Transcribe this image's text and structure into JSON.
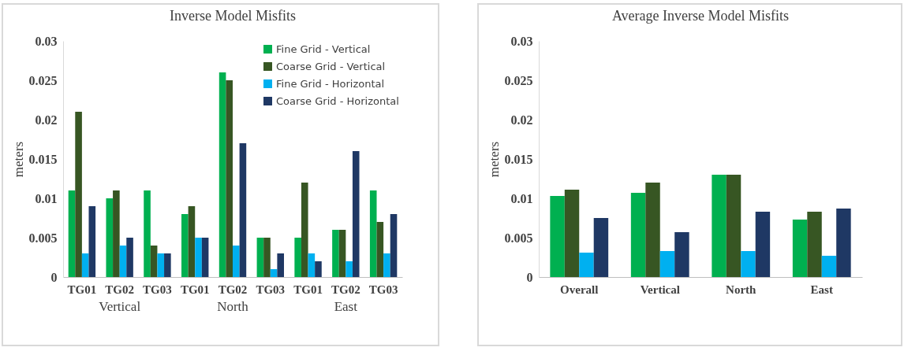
{
  "chart_data": [
    {
      "type": "bar",
      "title": "Inverse Model Misfits",
      "ylabel": "meters",
      "categories": [
        "TG01",
        "TG02",
        "TG03",
        "TG01",
        "TG02",
        "TG03",
        "TG01",
        "TG02",
        "TG03"
      ],
      "series": [
        {
          "name": "Fine Grid - Vertical",
          "color": "#00b050",
          "values": [
            0.011,
            0.01,
            0.011,
            0.008,
            0.026,
            0.005,
            0.005,
            0.006,
            0.011
          ]
        },
        {
          "name": "Coarse Grid - Vertical",
          "color": "#375623",
          "values": [
            0.021,
            0.011,
            0.004,
            0.009,
            0.025,
            0.005,
            0.012,
            0.006,
            0.007
          ]
        },
        {
          "name": "Fine Grid - Horizontal",
          "color": "#00b0f0",
          "values": [
            0.003,
            0.004,
            0.003,
            0.005,
            0.004,
            0.001,
            0.003,
            0.002,
            0.003
          ]
        },
        {
          "name": "Coarse Grid - Horizontal",
          "color": "#1f3864",
          "values": [
            0.009,
            0.005,
            0.003,
            0.005,
            0.017,
            0.003,
            0.002,
            0.016,
            0.008
          ]
        }
      ],
      "annotations": [
        "Vertical",
        "North",
        "East"
      ],
      "ylim": [
        0,
        0.03
      ],
      "yticks": [
        0,
        0.005,
        0.01,
        0.015,
        0.02,
        0.025,
        0.03
      ],
      "grid": false,
      "legend": "top right"
    },
    {
      "type": "bar",
      "title": "Average Inverse Model Misfits",
      "ylabel": "meters",
      "categories": [
        "Overall",
        "Vertical",
        "North",
        "East"
      ],
      "series": [
        {
          "color": "#00b050",
          "values": [
            0.0103,
            0.0107,
            0.013,
            0.0073
          ]
        },
        {
          "color": "#375623",
          "values": [
            0.0111,
            0.012,
            0.013,
            0.0083
          ]
        },
        {
          "color": "#00b0f0",
          "values": [
            0.0031,
            0.0033,
            0.0033,
            0.0027
          ]
        },
        {
          "color": "#1f3864",
          "values": [
            0.0075,
            0.0057,
            0.0083,
            0.0087
          ]
        }
      ],
      "ylim": [
        0,
        0.03
      ],
      "yticks": [
        0,
        0.005,
        0.01,
        0.015,
        0.02,
        0.025,
        0.03
      ],
      "grid": false,
      "legend": false
    }
  ]
}
